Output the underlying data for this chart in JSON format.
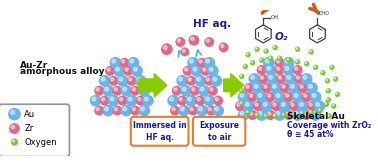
{
  "bg_color": "#ffffff",
  "au_color": "#6ab4e8",
  "zr_color": "#e06888",
  "o2_color": "#70c830",
  "arrow_color": "#88cc00",
  "text_blue": "#1a1a9a",
  "text_black": "#111111",
  "orange_arrow": "#d05818",
  "label_alloy_1": "Au-Zr",
  "label_alloy_2": "amorphous alloy",
  "label_immersed": "Immersed in\nHF aq.",
  "label_exposure": "Exposure\nto air",
  "label_skeletal": "Skeletal Au",
  "label_coverage": "Coverage with ZrO₂",
  "label_theta": "θ ≅ 45 at%",
  "label_hf": "HF aq.",
  "label_o2": "O₂",
  "legend_au": "Au",
  "legend_zr": "Zr",
  "legend_oxygen": "Oxygen",
  "au_r": 6.5,
  "zr_r": 5.5,
  "o_r": 3.0
}
